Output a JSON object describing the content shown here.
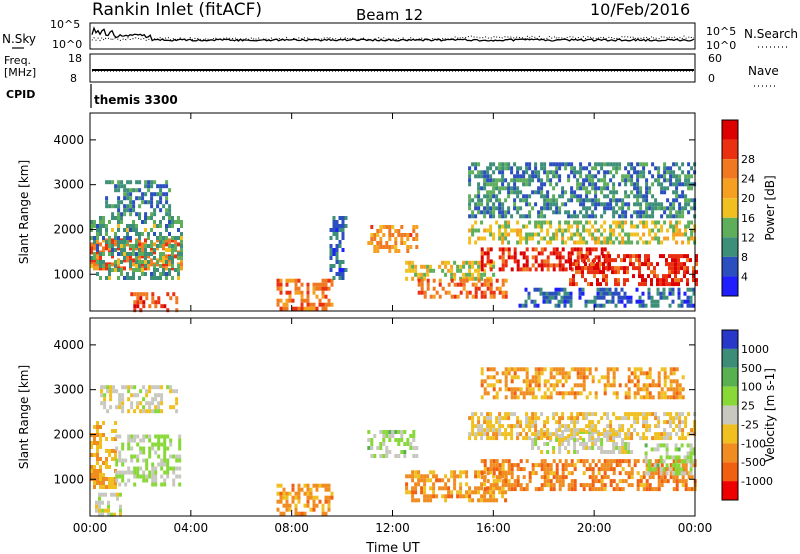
{
  "header": {
    "station": "Rankin Inlet (fitACF)",
    "beam": "Beam 12",
    "date": "10/Feb/2016"
  },
  "strips": {
    "nsky_label": "N.Sky",
    "nsearch_label": "N.Search",
    "nsky_ticks": [
      "10^5",
      "10^0"
    ],
    "freq_label": "Freq.",
    "freq_unit": "[MHz]",
    "freq_ticks": [
      "18",
      "8"
    ],
    "nave_label": "Nave",
    "nave_ticks": [
      "60",
      "0"
    ],
    "cpid_label": "CPID",
    "cpid_value": "themis 3300"
  },
  "chart_data": [
    {
      "type": "heatmap",
      "title": "",
      "ylabel": "Slant Range [km]",
      "xlabel": "",
      "x_ticks": [
        "00:00",
        "04:00",
        "08:00",
        "12:00",
        "16:00",
        "20:00",
        "00:00"
      ],
      "xlim_hours": [
        0,
        24
      ],
      "y_ticks": [
        1000,
        2000,
        3000,
        4000
      ],
      "ylim": [
        180,
        4600
      ],
      "colorbar": {
        "label": "Power [dB]",
        "ticks": [
          4,
          8,
          12,
          16,
          20,
          24,
          28
        ],
        "colors": [
          "#1e1eff",
          "#2c4fbf",
          "#3d8f7a",
          "#5fae5b",
          "#f0c020",
          "#f5a020",
          "#f07820",
          "#ea3010",
          "#dd0000"
        ],
        "range": [
          0,
          30
        ]
      },
      "regions": [
        {
          "t": [
            0.0,
            3.6
          ],
          "r": [
            1150,
            1800
          ],
          "level": 22
        },
        {
          "t": [
            0.0,
            3.6
          ],
          "r": [
            900,
            2300
          ],
          "level": 10
        },
        {
          "t": [
            0.6,
            3.2
          ],
          "r": [
            2300,
            3100
          ],
          "level": 8
        },
        {
          "t": [
            1.6,
            3.4
          ],
          "r": [
            220,
            600
          ],
          "level": 24
        },
        {
          "t": [
            7.4,
            9.6
          ],
          "r": [
            250,
            900
          ],
          "level": 22
        },
        {
          "t": [
            9.5,
            10.1
          ],
          "r": [
            900,
            2300
          ],
          "level": 6
        },
        {
          "t": [
            11.0,
            13.0
          ],
          "r": [
            1500,
            2100
          ],
          "level": 20
        },
        {
          "t": [
            12.5,
            16.0
          ],
          "r": [
            900,
            1300
          ],
          "level": 14
        },
        {
          "t": [
            13.0,
            16.5
          ],
          "r": [
            500,
            900
          ],
          "level": 22
        },
        {
          "t": [
            15.5,
            20.5
          ],
          "r": [
            1150,
            1600
          ],
          "level": 26
        },
        {
          "t": [
            15.0,
            24.0
          ],
          "r": [
            1700,
            2200
          ],
          "level": 14
        },
        {
          "t": [
            19.0,
            24.0
          ],
          "r": [
            750,
            1450
          ],
          "level": 26
        },
        {
          "t": [
            15.0,
            24.0
          ],
          "r": [
            2300,
            3500
          ],
          "level": 8
        },
        {
          "t": [
            17.0,
            24.0
          ],
          "r": [
            300,
            700
          ],
          "level": 6
        }
      ]
    },
    {
      "type": "heatmap",
      "title": "",
      "ylabel": "Slant Range [km]",
      "xlabel": "Time UT",
      "x_ticks": [
        "00:00",
        "04:00",
        "08:00",
        "12:00",
        "16:00",
        "20:00",
        "00:00"
      ],
      "xlim_hours": [
        0,
        24
      ],
      "y_ticks": [
        1000,
        2000,
        3000,
        4000
      ],
      "ylim": [
        180,
        4600
      ],
      "colorbar": {
        "label": "Velocity [m s-1]",
        "ticks": [
          1000,
          500,
          100,
          25,
          -25,
          -100,
          -500,
          -1000
        ],
        "colors": [
          "#2838c8",
          "#3c8c78",
          "#58b050",
          "#88d838",
          "#c8c8c0",
          "#f0c020",
          "#f08c20",
          "#f06010",
          "#ee0000"
        ],
        "range": [
          -1000,
          1000
        ]
      },
      "regions": [
        {
          "t": [
            0.0,
            1.0
          ],
          "r": [
            800,
            2300
          ],
          "level": -300
        },
        {
          "t": [
            1.0,
            3.6
          ],
          "r": [
            900,
            2000
          ],
          "level": 120
        },
        {
          "t": [
            0.4,
            3.4
          ],
          "r": [
            2500,
            3100
          ],
          "level": -60
        },
        {
          "t": [
            7.4,
            9.6
          ],
          "r": [
            250,
            900
          ],
          "level": -400
        },
        {
          "t": [
            11.0,
            13.0
          ],
          "r": [
            1500,
            2100
          ],
          "level": 150
        },
        {
          "t": [
            12.5,
            16.5
          ],
          "r": [
            500,
            1200
          ],
          "level": -400
        },
        {
          "t": [
            15.5,
            23.5
          ],
          "r": [
            2800,
            3500
          ],
          "level": -400
        },
        {
          "t": [
            17.5,
            21.5
          ],
          "r": [
            1600,
            2100
          ],
          "level": 0
        },
        {
          "t": [
            15.5,
            24.0
          ],
          "r": [
            800,
            1450
          ],
          "level": -500
        },
        {
          "t": [
            22.0,
            24.0
          ],
          "r": [
            1100,
            1800
          ],
          "level": 150
        },
        {
          "t": [
            15.0,
            24.0
          ],
          "r": [
            1900,
            2500
          ],
          "level": -200
        },
        {
          "t": [
            0.2,
            1.2
          ],
          "r": [
            250,
            700
          ],
          "level": 0
        }
      ]
    }
  ]
}
